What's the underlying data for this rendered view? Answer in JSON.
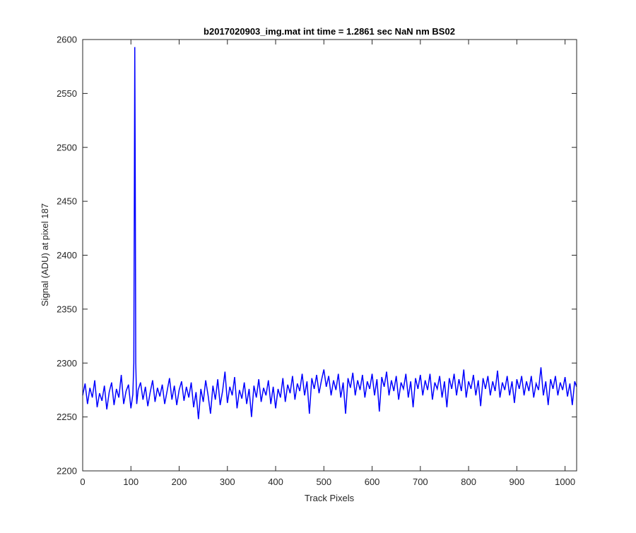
{
  "chart_data": {
    "type": "line",
    "title": "b2017020903_img.mat int time = 1.2861 sec  NaN nm BS02",
    "xlabel": "Track Pixels",
    "ylabel": "Signal (ADU) at pixel 187",
    "xlim": [
      0,
      1024
    ],
    "ylim": [
      2200,
      2600
    ],
    "xticks": [
      0,
      100,
      200,
      300,
      400,
      500,
      600,
      700,
      800,
      900,
      1000
    ],
    "yticks": [
      2200,
      2250,
      2300,
      2350,
      2400,
      2450,
      2500,
      2550,
      2600
    ],
    "grid": false,
    "line_color": "#0000ff",
    "series": [
      {
        "points": [
          [
            0,
            2270
          ],
          [
            5,
            2281
          ],
          [
            10,
            2262
          ],
          [
            15,
            2277
          ],
          [
            20,
            2268
          ],
          [
            25,
            2284
          ],
          [
            30,
            2259
          ],
          [
            35,
            2272
          ],
          [
            40,
            2265
          ],
          [
            45,
            2279
          ],
          [
            50,
            2257
          ],
          [
            55,
            2273
          ],
          [
            60,
            2282
          ],
          [
            65,
            2261
          ],
          [
            70,
            2276
          ],
          [
            75,
            2268
          ],
          [
            80,
            2289
          ],
          [
            85,
            2262
          ],
          [
            90,
            2274
          ],
          [
            95,
            2280
          ],
          [
            100,
            2258
          ],
          [
            104,
            2271
          ],
          [
            106,
            2300
          ],
          [
            107,
            2440
          ],
          [
            108,
            2593
          ],
          [
            109,
            2470
          ],
          [
            110,
            2300
          ],
          [
            112,
            2262
          ],
          [
            115,
            2275
          ],
          [
            120,
            2282
          ],
          [
            125,
            2266
          ],
          [
            130,
            2278
          ],
          [
            135,
            2260
          ],
          [
            140,
            2273
          ],
          [
            145,
            2284
          ],
          [
            150,
            2264
          ],
          [
            155,
            2277
          ],
          [
            160,
            2269
          ],
          [
            165,
            2280
          ],
          [
            170,
            2262
          ],
          [
            175,
            2274
          ],
          [
            180,
            2286
          ],
          [
            185,
            2266
          ],
          [
            190,
            2279
          ],
          [
            195,
            2261
          ],
          [
            200,
            2275
          ],
          [
            205,
            2283
          ],
          [
            210,
            2265
          ],
          [
            215,
            2278
          ],
          [
            220,
            2268
          ],
          [
            225,
            2282
          ],
          [
            230,
            2259
          ],
          [
            235,
            2273
          ],
          [
            240,
            2248
          ],
          [
            245,
            2276
          ],
          [
            250,
            2264
          ],
          [
            255,
            2284
          ],
          [
            260,
            2270
          ],
          [
            265,
            2253
          ],
          [
            270,
            2279
          ],
          [
            275,
            2266
          ],
          [
            280,
            2285
          ],
          [
            285,
            2261
          ],
          [
            290,
            2274
          ],
          [
            295,
            2292
          ],
          [
            300,
            2263
          ],
          [
            305,
            2278
          ],
          [
            310,
            2270
          ],
          [
            315,
            2287
          ],
          [
            320,
            2258
          ],
          [
            325,
            2275
          ],
          [
            330,
            2267
          ],
          [
            335,
            2282
          ],
          [
            340,
            2262
          ],
          [
            345,
            2276
          ],
          [
            350,
            2250
          ],
          [
            355,
            2279
          ],
          [
            360,
            2268
          ],
          [
            365,
            2285
          ],
          [
            370,
            2264
          ],
          [
            375,
            2277
          ],
          [
            380,
            2270
          ],
          [
            385,
            2284
          ],
          [
            390,
            2262
          ],
          [
            395,
            2278
          ],
          [
            400,
            2258
          ],
          [
            405,
            2276
          ],
          [
            410,
            2268
          ],
          [
            415,
            2286
          ],
          [
            420,
            2264
          ],
          [
            425,
            2280
          ],
          [
            430,
            2272
          ],
          [
            435,
            2288
          ],
          [
            440,
            2266
          ],
          [
            445,
            2281
          ],
          [
            450,
            2274
          ],
          [
            455,
            2290
          ],
          [
            460,
            2270
          ],
          [
            465,
            2283
          ],
          [
            470,
            2253
          ],
          [
            475,
            2286
          ],
          [
            480,
            2276
          ],
          [
            485,
            2289
          ],
          [
            490,
            2272
          ],
          [
            495,
            2284
          ],
          [
            500,
            2294
          ],
          [
            505,
            2278
          ],
          [
            510,
            2288
          ],
          [
            515,
            2270
          ],
          [
            520,
            2284
          ],
          [
            525,
            2275
          ],
          [
            530,
            2290
          ],
          [
            535,
            2268
          ],
          [
            540,
            2282
          ],
          [
            545,
            2253
          ],
          [
            550,
            2286
          ],
          [
            555,
            2277
          ],
          [
            560,
            2291
          ],
          [
            565,
            2270
          ],
          [
            570,
            2284
          ],
          [
            575,
            2275
          ],
          [
            580,
            2289
          ],
          [
            585,
            2268
          ],
          [
            590,
            2283
          ],
          [
            595,
            2276
          ],
          [
            600,
            2290
          ],
          [
            605,
            2270
          ],
          [
            610,
            2285
          ],
          [
            615,
            2255
          ],
          [
            620,
            2287
          ],
          [
            625,
            2278
          ],
          [
            630,
            2292
          ],
          [
            635,
            2270
          ],
          [
            640,
            2284
          ],
          [
            645,
            2274
          ],
          [
            650,
            2288
          ],
          [
            655,
            2266
          ],
          [
            660,
            2282
          ],
          [
            665,
            2276
          ],
          [
            670,
            2290
          ],
          [
            675,
            2268
          ],
          [
            680,
            2283
          ],
          [
            685,
            2259
          ],
          [
            690,
            2286
          ],
          [
            695,
            2276
          ],
          [
            700,
            2289
          ],
          [
            705,
            2270
          ],
          [
            710,
            2284
          ],
          [
            715,
            2275
          ],
          [
            720,
            2290
          ],
          [
            725,
            2266
          ],
          [
            730,
            2282
          ],
          [
            735,
            2276
          ],
          [
            740,
            2288
          ],
          [
            745,
            2268
          ],
          [
            750,
            2283
          ],
          [
            755,
            2259
          ],
          [
            760,
            2286
          ],
          [
            765,
            2276
          ],
          [
            770,
            2290
          ],
          [
            775,
            2270
          ],
          [
            780,
            2285
          ],
          [
            785,
            2274
          ],
          [
            790,
            2294
          ],
          [
            795,
            2268
          ],
          [
            800,
            2283
          ],
          [
            805,
            2276
          ],
          [
            810,
            2289
          ],
          [
            815,
            2270
          ],
          [
            820,
            2284
          ],
          [
            825,
            2260
          ],
          [
            830,
            2286
          ],
          [
            835,
            2276
          ],
          [
            840,
            2288
          ],
          [
            845,
            2270
          ],
          [
            850,
            2283
          ],
          [
            855,
            2274
          ],
          [
            860,
            2293
          ],
          [
            865,
            2268
          ],
          [
            870,
            2282
          ],
          [
            875,
            2275
          ],
          [
            880,
            2288
          ],
          [
            885,
            2270
          ],
          [
            890,
            2283
          ],
          [
            895,
            2263
          ],
          [
            900,
            2285
          ],
          [
            905,
            2276
          ],
          [
            910,
            2288
          ],
          [
            915,
            2270
          ],
          [
            920,
            2283
          ],
          [
            925,
            2274
          ],
          [
            930,
            2288
          ],
          [
            935,
            2268
          ],
          [
            940,
            2281
          ],
          [
            945,
            2275
          ],
          [
            950,
            2296
          ],
          [
            955,
            2270
          ],
          [
            960,
            2283
          ],
          [
            965,
            2261
          ],
          [
            970,
            2285
          ],
          [
            975,
            2276
          ],
          [
            980,
            2288
          ],
          [
            985,
            2270
          ],
          [
            990,
            2282
          ],
          [
            995,
            2275
          ],
          [
            1000,
            2287
          ],
          [
            1005,
            2269
          ],
          [
            1010,
            2281
          ],
          [
            1015,
            2261
          ],
          [
            1020,
            2283
          ],
          [
            1024,
            2278
          ]
        ]
      }
    ]
  }
}
